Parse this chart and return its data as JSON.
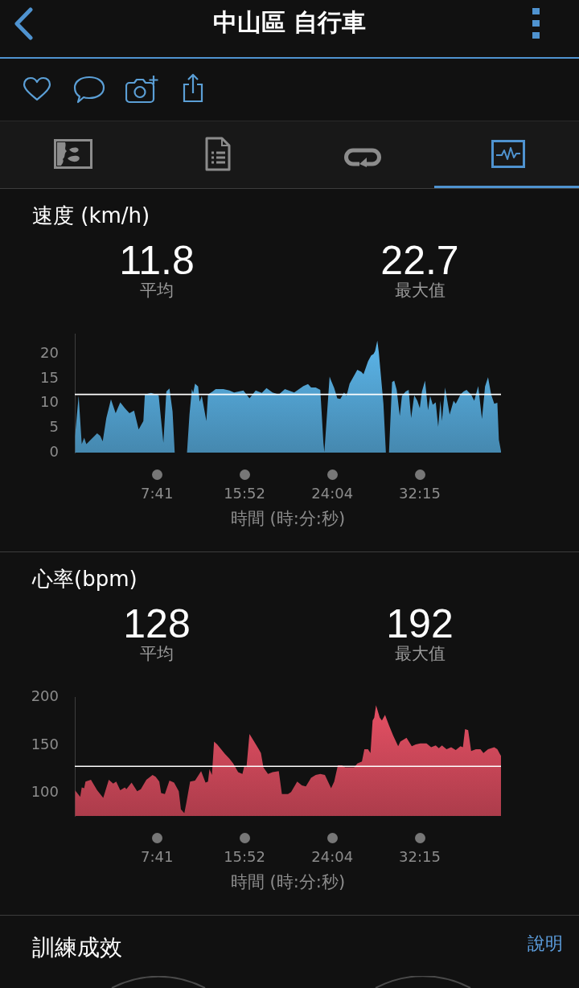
{
  "chart_data": [
    {
      "type": "other",
      "title": "中山區 自行車"
    },
    {
      "type": "area",
      "title": "速度 (km/h)",
      "annotations": [
        "11.8",
        "平均",
        "22.7",
        "最大值"
      ],
      "xlabel": "時間 (時:分:秒)",
      "color": "#58aee0",
      "x": [
        0.02,
        0.36,
        0.65,
        0.88,
        1.08,
        2.09,
        2.38,
        2.61,
        2.95,
        3.38,
        3.82,
        4.25,
        4.68,
        5.11,
        5.54,
        5.97,
        6.41,
        6.55,
        7.13,
        7.84,
        8.28,
        8.56,
        8.85,
        9.14,
        9.34,
        10.49,
        10.72,
        10.95,
        11.07,
        11.24,
        11.53,
        11.67,
        11.87,
        12.3,
        12.45,
        12.88,
        13.17,
        13.89,
        14.46,
        14.89,
        15.76,
        16.33,
        16.91,
        17.48,
        17.92,
        18.49,
        19.07,
        19.64,
        20.51,
        21.37,
        21.8,
        22.09,
        22.52,
        22.95,
        23.24,
        23.33,
        23.82,
        23.96,
        24.25,
        24.54,
        24.82,
        25.17,
        25.4,
        25.69,
        26.41,
        26.78,
        26.99,
        27.41,
        27.7,
        27.93,
        28.07,
        28.28,
        28.42,
        28.85,
        29.08,
        29.37,
        29.66,
        29.86,
        30.09,
        30.38,
        30.58,
        30.93,
        31.21,
        31.44,
        31.73,
        32.02,
        32.25,
        32.45,
        32.74,
        33.02,
        33.22,
        33.46,
        33.74,
        33.97,
        34.18,
        34.32,
        34.61,
        35.04,
        35.41,
        35.61,
        36.05,
        36.34,
        36.62,
        36.85,
        37.05,
        37.34,
        37.71,
        38.06,
        38.35,
        38.63,
        38.92,
        39.21,
        39.5,
        39.64,
        39.84
      ],
      "values": [
        3.3,
        11.5,
        1.7,
        3.0,
        1.7,
        3.9,
        3.4,
        2.3,
        7.0,
        10.8,
        8.0,
        10.2,
        9.0,
        8.0,
        8.5,
        4.7,
        6.4,
        11.8,
        12.1,
        11.6,
        2.0,
        12.4,
        13.0,
        8.3,
        0,
        0,
        7.7,
        12.9,
        12.1,
        14.0,
        13.4,
        10.3,
        11.5,
        6.4,
        11.8,
        12.4,
        12.9,
        12.9,
        12.6,
        12.2,
        12.6,
        11.0,
        12.6,
        12.1,
        13.1,
        12.2,
        11.8,
        12.9,
        12.2,
        13.5,
        13.9,
        13.2,
        13.2,
        12.7,
        2.0,
        0.1,
        15.4,
        14.6,
        13.1,
        11.0,
        10.9,
        12.2,
        11.5,
        14.0,
        16.8,
        16.4,
        15.9,
        18.5,
        19.7,
        20.0,
        20.6,
        22.7,
        20.3,
        9.9,
        0,
        0,
        14.3,
        14.6,
        12.7,
        7.4,
        11.5,
        12.4,
        12.7,
        7.0,
        11.6,
        10.5,
        9.0,
        12.4,
        14.6,
        8.6,
        11.5,
        9.7,
        10.2,
        5.2,
        10.5,
        6.4,
        13.2,
        7.7,
        10.5,
        9.9,
        11.8,
        12.4,
        12.7,
        12.2,
        11.8,
        10.5,
        13.5,
        6.8,
        13.4,
        15.3,
        11.8,
        9.9,
        10.1,
        2.6,
        0.3
      ],
      "xlim": [
        0,
        39.84
      ],
      "xticks": [
        {
          "value": 7.683,
          "label": "7:41"
        },
        {
          "value": 15.867,
          "label": "15:52"
        },
        {
          "value": 24.067,
          "label": "24:04"
        },
        {
          "value": 32.25,
          "label": "32:15"
        }
      ],
      "ylim": [
        0,
        24
      ],
      "yticks": [
        0,
        5,
        10,
        15,
        20
      ],
      "ref_lines": [
        {
          "axis": "y",
          "value": 11.8,
          "color": "#ffffff"
        }
      ]
    },
    {
      "type": "area",
      "title": "心率(bpm)",
      "annotations": [
        "128",
        "平均",
        "192",
        "最大值"
      ],
      "xlabel": "時間 (時:分:秒)",
      "color": "#dc4d60",
      "x": [
        0.02,
        0.51,
        0.65,
        0.88,
        1.0,
        1.51,
        2.09,
        2.66,
        3.18,
        3.59,
        3.87,
        4.25,
        4.68,
        4.82,
        5.31,
        5.83,
        6.17,
        6.69,
        7.27,
        7.56,
        7.9,
        8.07,
        8.42,
        8.85,
        9.28,
        9.72,
        9.92,
        10.24,
        10.43,
        10.78,
        11.24,
        11.81,
        12.22,
        12.45,
        12.59,
        12.82,
        13.02,
        13.31,
        14.03,
        14.46,
        14.81,
        15.27,
        15.67,
        15.84,
        16.05,
        16.33,
        16.71,
        17.2,
        17.4,
        17.63,
        18.06,
        18.49,
        19.07,
        19.36,
        19.93,
        20.22,
        20.79,
        21.23,
        21.6,
        22.09,
        22.52,
        22.95,
        23.38,
        23.96,
        24.25,
        24.59,
        24.97,
        25.26,
        25.69,
        26.12,
        26.41,
        26.84,
        27.07,
        27.41,
        27.64,
        27.84,
        27.99,
        28.16,
        28.51,
        28.71,
        29.0,
        29.37,
        29.77,
        30.23,
        30.43,
        31.01,
        31.5,
        31.87,
        32.3,
        32.88,
        33.31,
        33.74,
        34.03,
        34.32,
        34.75,
        35.18,
        35.61,
        36.05,
        36.28,
        36.48,
        36.77,
        37.05,
        37.49,
        37.92,
        38.2,
        38.63,
        39.21,
        39.5,
        39.73,
        39.84
      ],
      "values": [
        103,
        96,
        106,
        105,
        112,
        114,
        103,
        95,
        114,
        110,
        112,
        103,
        106,
        104,
        111,
        102,
        104,
        114,
        119,
        117,
        112,
        100,
        99,
        113,
        111,
        102,
        83,
        79,
        90,
        112,
        113,
        123,
        111,
        112,
        125,
        119,
        154,
        151,
        141,
        136,
        131,
        122,
        120,
        128,
        127,
        162,
        155,
        146,
        142,
        127,
        120,
        122,
        123,
        99,
        99,
        101,
        112,
        108,
        107,
        116,
        119,
        120,
        119,
        105,
        112,
        129,
        129,
        127,
        127,
        127,
        131,
        133,
        146,
        146,
        142,
        176,
        179,
        192,
        179,
        176,
        182,
        171,
        160,
        149,
        154,
        158,
        149,
        151,
        152,
        152,
        148,
        150,
        147,
        150,
        146,
        148,
        145,
        149,
        148,
        167,
        166,
        144,
        146,
        146,
        142,
        146,
        148,
        146,
        141,
        139
      ],
      "xlim": [
        0,
        39.84
      ],
      "xticks": [
        {
          "value": 7.683,
          "label": "7:41"
        },
        {
          "value": 15.867,
          "label": "15:52"
        },
        {
          "value": 24.067,
          "label": "24:04"
        },
        {
          "value": 32.25,
          "label": "32:15"
        }
      ],
      "ylim": [
        76,
        200
      ],
      "yticks": [
        100,
        150,
        200
      ],
      "ref_lines": [
        {
          "axis": "y",
          "value": 128,
          "color": "#ffffff"
        }
      ]
    },
    {
      "type": "other",
      "title": "訓練成效",
      "annotations": [
        "說明"
      ]
    }
  ]
}
